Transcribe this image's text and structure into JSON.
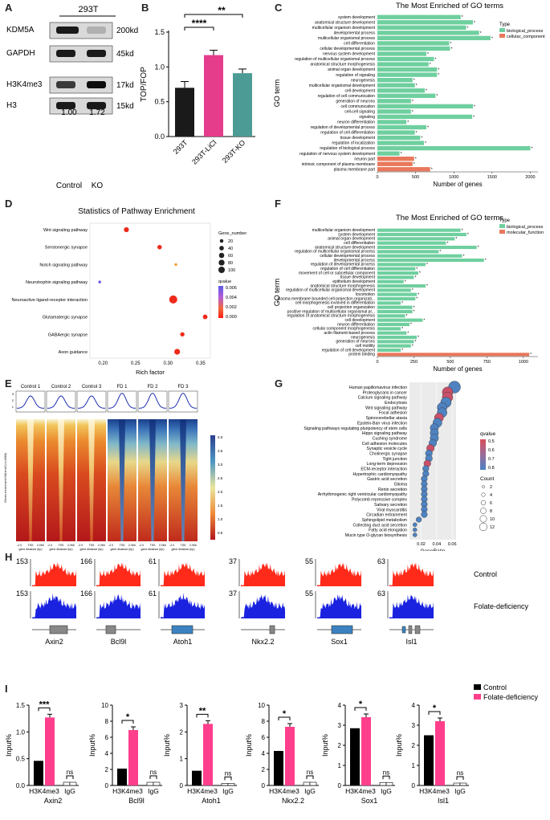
{
  "panels": {
    "A": {
      "label": "A",
      "cell_line": "293T",
      "blots": [
        {
          "name": "KDM5A",
          "size": "200kd"
        },
        {
          "name": "GAPDH",
          "size": "45kd"
        },
        {
          "name": "H3K4me3",
          "size": "17kd"
        },
        {
          "name": "H3",
          "size": "15kd"
        }
      ],
      "ratios": [
        "1.00",
        "1.72"
      ],
      "lanes": [
        "Control",
        "KO"
      ]
    },
    "B": {
      "label": "B",
      "significance": [
        "****",
        "**"
      ]
    },
    "C": {
      "label": "C",
      "legend_title": "Type",
      "legend": [
        "biological_process",
        "cellular_component"
      ]
    },
    "D": {
      "label": "D",
      "title": "Statistics of Pathway Enrichment",
      "size_legend_title": "Gene_number",
      "color_legend_title": "qvalue"
    },
    "E": {
      "label": "E",
      "samples": [
        "Control 1",
        "Control 2",
        "Control 3",
        "FD 1",
        "FD 2",
        "FD 3"
      ],
      "ylabel": "Genes enrichment H3K4me3 (n=2669)",
      "xticks": [
        "-2.0",
        "TSS",
        "2.0Kb"
      ],
      "xlabel": "gene distance (bp)",
      "colorbar": [
        "4.0",
        "3.5",
        "3.0",
        "2.5",
        "2.0",
        "1.5",
        "1.0",
        "0.5"
      ],
      "profile_yticks": [
        "3",
        "2",
        "1"
      ]
    },
    "F": {
      "label": "F",
      "legend_title": "Type",
      "legend": [
        "biological_process",
        "molecular_function"
      ]
    },
    "G": {
      "label": "G",
      "qvalue_title": "qvalue",
      "count_title": "Count"
    },
    "H": {
      "label": "H",
      "genes": [
        {
          "name": "Axin2",
          "scale1": "153",
          "scale2": "153"
        },
        {
          "name": "Bcl9l",
          "scale1": "166",
          "scale2": "166"
        },
        {
          "name": "Atoh1",
          "scale1": "61",
          "scale2": "61"
        },
        {
          "name": "Nkx2.2",
          "scale1": "37",
          "scale2": "37"
        },
        {
          "name": "Sox1",
          "scale1": "55",
          "scale2": "55"
        },
        {
          "name": "Isl1",
          "scale1": "63",
          "scale2": "63"
        }
      ],
      "rows": [
        "Control",
        "Folate-deficiency"
      ]
    },
    "I": {
      "label": "I",
      "legend": [
        "Control",
        "Folate-deficiency"
      ]
    }
  },
  "chart_data": [
    {
      "id": "B",
      "type": "bar",
      "title": "",
      "categories": [
        "293T",
        "293T-LiCl",
        "293T-KO"
      ],
      "values": [
        0.7,
        1.17,
        0.91
      ],
      "errors": [
        0.09,
        0.07,
        0.06
      ],
      "colors": [
        "#1a1a1a",
        "#e63c8c",
        "#4d9b95"
      ],
      "ylabel": "TOP/FOP",
      "ylim": [
        0,
        1.5
      ],
      "yticks": [
        "0.0",
        "0.5",
        "1.0",
        "1.5"
      ]
    },
    {
      "id": "C",
      "type": "bar",
      "title": "The Most Enriched of GO terms",
      "orientation": "horizontal",
      "ylabel": "GO term",
      "xlabel": "Number of genes",
      "xlim": [
        0,
        2100
      ],
      "xticks": [
        "0",
        "500",
        "1000",
        "1500",
        "2000"
      ],
      "categories": [
        "system development",
        "anatomical structure development",
        "multicellular organism development",
        "developmental process",
        "multicellular organismal process",
        "cell differentiation",
        "cellular developmental process",
        "nervous system development",
        "regulation of multicellular organismal process",
        "anatomical structure morphogenesis",
        "animal organ development",
        "regulation of signaling",
        "neurogenesis",
        "multicellular organismal development",
        "cell development",
        "regulation of cell communication",
        "generation of neurons",
        "cell communication",
        "cell-cell signaling",
        "signaling",
        "neuron differentiation",
        "regulation of developmental process",
        "regulation of cell differentiation",
        "tissue development",
        "regulation of localization",
        "regulation of biological process",
        "regulation of nervous system development",
        "neuron part",
        "intrinsic component of plasma membrane",
        "plasma membrane part"
      ],
      "values": [
        1090,
        1250,
        1160,
        1330,
        1480,
        940,
        950,
        640,
        740,
        670,
        780,
        780,
        460,
        490,
        620,
        760,
        440,
        1250,
        440,
        1240,
        380,
        640,
        490,
        560,
        610,
        2000,
        290,
        480,
        460,
        690
      ],
      "types": [
        "bp",
        "bp",
        "bp",
        "bp",
        "bp",
        "bp",
        "bp",
        "bp",
        "bp",
        "bp",
        "bp",
        "bp",
        "bp",
        "bp",
        "bp",
        "bp",
        "bp",
        "bp",
        "bp",
        "bp",
        "bp",
        "bp",
        "bp",
        "bp",
        "bp",
        "bp",
        "bp",
        "cc",
        "cc",
        "cc"
      ]
    },
    {
      "id": "D",
      "type": "scatter",
      "title": "Statistics of Pathway Enrichment",
      "xlabel": "Rich factor",
      "xlim": [
        0.18,
        0.365
      ],
      "xticks": [
        "0.20",
        "0.25",
        "0.30",
        "0.35"
      ],
      "categories": [
        "Wnt signaling pathway",
        "Serotonergic synapse",
        "Notch signaling pathway",
        "Neurotrophin signaling pathway",
        "Neuroactive ligand-receptor interaction",
        "Glutamatergic synapse",
        "GABAergic synapse",
        "Axon guidance"
      ],
      "x": [
        0.236,
        0.287,
        0.312,
        0.195,
        0.308,
        0.357,
        0.322,
        0.314
      ],
      "gene_number": [
        30,
        22,
        5,
        5,
        100,
        25,
        20,
        45
      ],
      "qvalue": [
        0.0002,
        0.0005,
        0.002,
        0.007,
        0.0001,
        0.0003,
        0.0004,
        0.0002
      ],
      "size_legend": [
        "20",
        "40",
        "60",
        "80",
        "100"
      ],
      "color_legend": [
        "0.006",
        "0.004",
        "0.002",
        "0.000"
      ]
    },
    {
      "id": "F",
      "type": "bar",
      "title": "The Most Enriched of GO terms",
      "orientation": "horizontal",
      "ylabel": "GO term",
      "xlabel": "Number of genes",
      "xlim": [
        0,
        1100
      ],
      "xticks": [
        "0",
        "250",
        "500",
        "750",
        "1000"
      ],
      "categories": [
        "multicellular organism development",
        "system development",
        "animal organ development",
        "cell differentiation",
        "anatomical structure development",
        "regulation of multicellular organismal process",
        "cellular developmental process",
        "developmental process",
        "regulation of developmental process",
        "regulation of cell differentiation",
        "movement of cell or subcellular component",
        "tissue development",
        "epithelium development",
        "anatomical structure morphogenesis",
        "regulation of multicellular organismal development",
        "locomotion",
        "plasma membrane bounded cell projection organizati...",
        "cell morphogenesis involved in differentiation",
        "cell projection organization",
        "positive regulation of multicellular organismal pr...",
        "regulation of anatomical structure morphogenesis",
        "cell development",
        "neuron differentiation",
        "cellular component morphogenesis",
        "actin filament-based process",
        "neurogenesis",
        "generation of neurons",
        "cell motility",
        "regulation of cell development",
        "protein binding"
      ],
      "values": [
        570,
        610,
        530,
        470,
        680,
        420,
        580,
        730,
        330,
        260,
        280,
        250,
        180,
        330,
        230,
        270,
        260,
        160,
        240,
        240,
        190,
        310,
        220,
        160,
        200,
        270,
        250,
        230,
        160,
        1040
      ],
      "types": [
        "bp",
        "bp",
        "bp",
        "bp",
        "bp",
        "bp",
        "bp",
        "bp",
        "bp",
        "bp",
        "bp",
        "bp",
        "bp",
        "bp",
        "bp",
        "bp",
        "bp",
        "bp",
        "bp",
        "bp",
        "bp",
        "bp",
        "bp",
        "bp",
        "bp",
        "bp",
        "bp",
        "bp",
        "bp",
        "mf"
      ]
    },
    {
      "id": "G",
      "type": "scatter",
      "title": "",
      "xlabel": "GeneRatio",
      "xlim": [
        0.005,
        0.065
      ],
      "xticks": [
        "0.02",
        "0.04",
        "0.06"
      ],
      "categories": [
        "Human papillomavirus infection",
        "Proteoglycans in cancer",
        "Calcium signaling pathway",
        "Endocytosis",
        "Wnt signaling pathway",
        "Focal adhesion",
        "Spinocerebellar ataxia",
        "Epstein-Barr virus infection",
        "Signaling pathways regulating pluripotency of stem cells",
        "Hippo signaling pathway",
        "Cushing syndrome",
        "Cell adhesion molecules",
        "Synaptic vesicle cycle",
        "Cholinergic synapse",
        "Tight junction",
        "Long-term depression",
        "ECM-receptor interaction",
        "Hypertrophic cardiomyopathy",
        "Gastric acid secretion",
        "Glioma",
        "Renin secretion",
        "Arrhythmogenic right ventricular cardiomyopathy",
        "Polycomb repressive complex",
        "Salivary secretion",
        "Viral myocarditis",
        "Circadian entrainment",
        "Sphingolipid metabolism",
        "Collecting duct acid secretion",
        "Fatty acid elongation",
        "Mucin type O-glycan biosynthesis"
      ],
      "x": [
        0.063,
        0.054,
        0.054,
        0.052,
        0.047,
        0.047,
        0.043,
        0.041,
        0.037,
        0.037,
        0.037,
        0.035,
        0.032,
        0.03,
        0.03,
        0.028,
        0.026,
        0.026,
        0.024,
        0.024,
        0.024,
        0.024,
        0.024,
        0.024,
        0.024,
        0.024,
        0.017,
        0.012,
        0.012,
        0.012
      ],
      "count": [
        13,
        11,
        11,
        11,
        10,
        10,
        9,
        9,
        8,
        8,
        8,
        7,
        7,
        6,
        6,
        6,
        5,
        5,
        5,
        5,
        5,
        5,
        5,
        5,
        5,
        5,
        4,
        2,
        2,
        2
      ],
      "qvalue": [
        0.8,
        0.45,
        0.5,
        0.8,
        0.8,
        0.8,
        0.45,
        0.8,
        0.8,
        0.8,
        0.8,
        0.8,
        0.45,
        0.8,
        0.8,
        0.45,
        0.8,
        0.8,
        0.8,
        0.8,
        0.8,
        0.8,
        0.8,
        0.8,
        0.8,
        0.8,
        0.8,
        0.8,
        0.8,
        0.8
      ],
      "qvalue_legend": [
        "0.5",
        "0.6",
        "0.7",
        "0.8"
      ],
      "count_legend": [
        "2",
        "4",
        "6",
        "8",
        "10",
        "12"
      ]
    },
    {
      "id": "I",
      "type": "bar",
      "title": "",
      "ylabel": "Input%",
      "series": [
        {
          "name": "Control"
        },
        {
          "name": "Folate-deficiency"
        }
      ],
      "groups": [
        {
          "gene": "Axin2",
          "ymax": 1.5,
          "yticks": [
            "0.0",
            "0.5",
            "1.0",
            "1.5"
          ],
          "ctrl": 0.46,
          "fd": 1.27,
          "igg": 0.06,
          "sig": "***"
        },
        {
          "gene": "Bcl9l",
          "ymax": 10,
          "yticks": [
            "0",
            "2",
            "4",
            "6",
            "8",
            "10"
          ],
          "ctrl": 2.1,
          "fd": 6.9,
          "igg": 0.4,
          "sig": "*"
        },
        {
          "gene": "Atoh1",
          "ymax": 3,
          "yticks": [
            "0",
            "1",
            "2",
            "3"
          ],
          "ctrl": 0.55,
          "fd": 2.3,
          "igg": 0.08,
          "sig": "**"
        },
        {
          "gene": "Nkx2.2",
          "ymax": 10,
          "yticks": [
            "0",
            "2",
            "4",
            "6",
            "8",
            "10"
          ],
          "ctrl": 4.3,
          "fd": 7.3,
          "igg": 0.4,
          "sig": "*"
        },
        {
          "gene": "Sox1",
          "ymax": 4,
          "yticks": [
            "0",
            "1",
            "2",
            "3",
            "4"
          ],
          "ctrl": 2.85,
          "fd": 3.4,
          "igg": 0.15,
          "sig": "*"
        },
        {
          "gene": "Isl1",
          "ymax": 4,
          "yticks": [
            "0",
            "1",
            "2",
            "3",
            "4"
          ],
          "ctrl": 2.5,
          "fd": 3.2,
          "igg": 0.12,
          "sig": "*"
        }
      ],
      "xlabels": [
        "H3K4me3",
        "IgG"
      ],
      "ns_label": "ns"
    }
  ]
}
